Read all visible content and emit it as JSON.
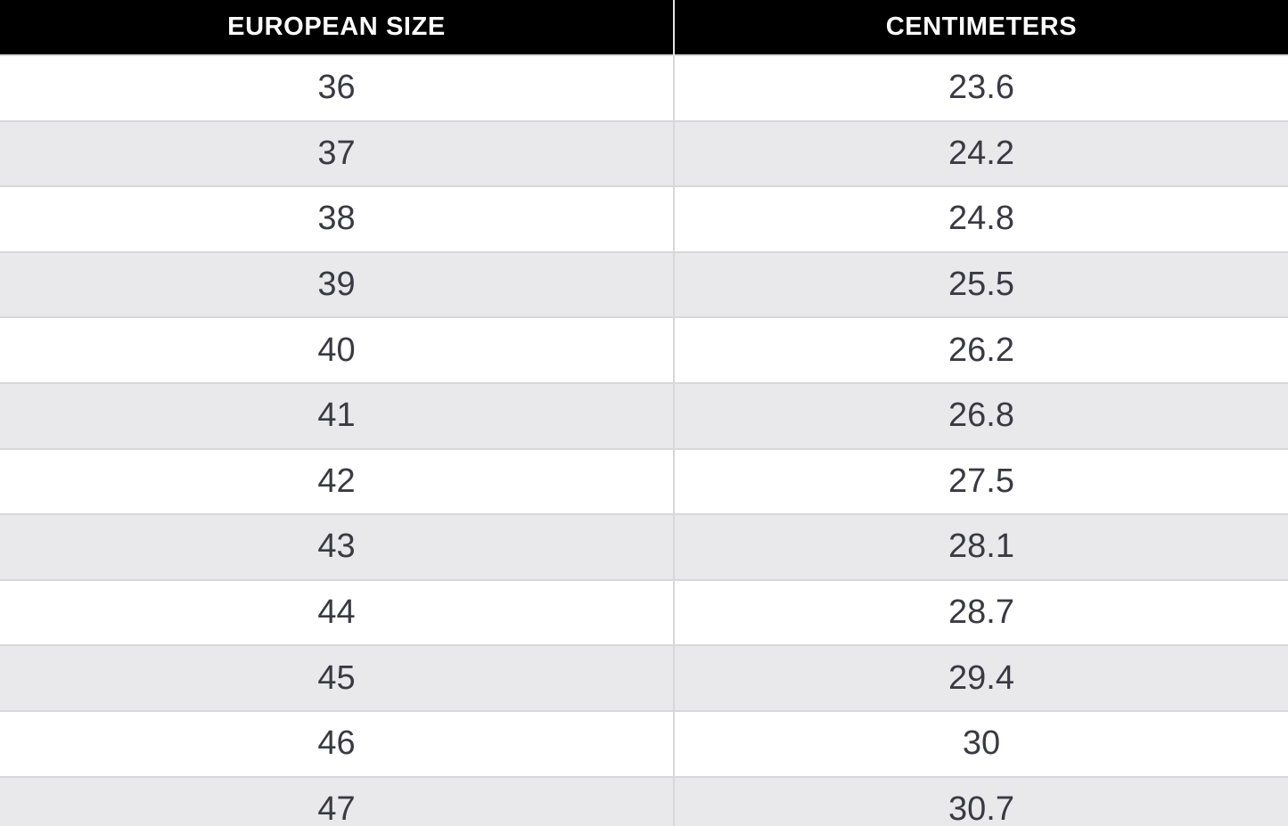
{
  "chart_data": {
    "type": "table",
    "columns": [
      "EUROPEAN SIZE",
      "CENTIMETERS"
    ],
    "rows": [
      [
        "36",
        "23.6"
      ],
      [
        "37",
        "24.2"
      ],
      [
        "38",
        "24.8"
      ],
      [
        "39",
        "25.5"
      ],
      [
        "40",
        "26.2"
      ],
      [
        "41",
        "26.8"
      ],
      [
        "42",
        "27.5"
      ],
      [
        "43",
        "28.1"
      ],
      [
        "44",
        "28.7"
      ],
      [
        "45",
        "29.4"
      ],
      [
        "46",
        "30"
      ],
      [
        "47",
        "30.7"
      ]
    ]
  },
  "colors": {
    "header_bg": "#000000",
    "header_text": "#ffffff",
    "row_bg": "#ffffff",
    "stripe_bg": "#e9e8ea",
    "grid_line": "#d8d8d8",
    "header_divider": "#e5e5e5",
    "cell_text": "#3a3a43"
  }
}
